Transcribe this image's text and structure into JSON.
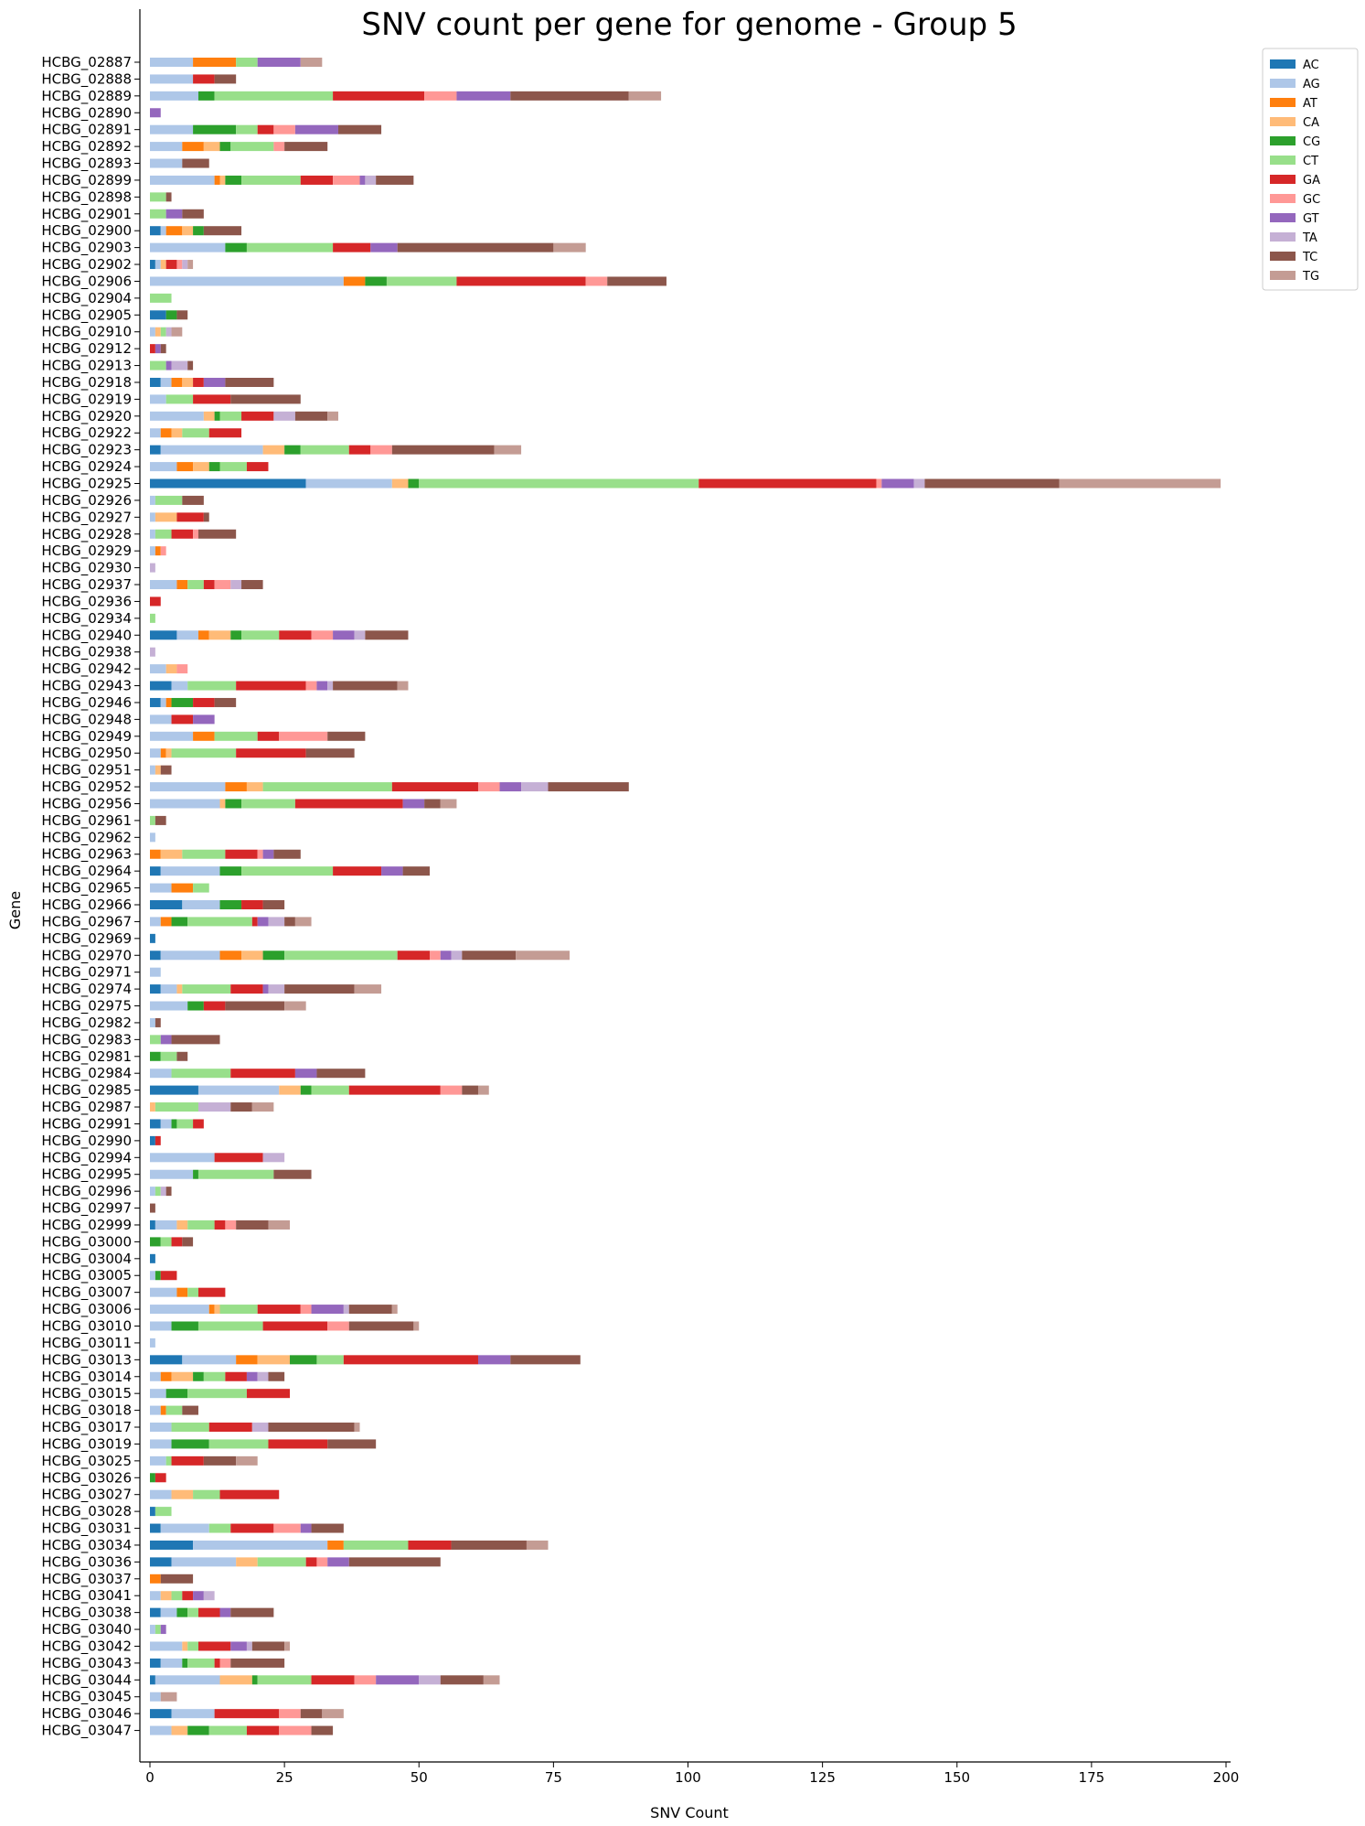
{
  "chart_data": {
    "type": "bar",
    "orientation": "horizontal",
    "stacked": true,
    "title": "SNV count per gene for genome - Group 5",
    "xlabel": "SNV Count",
    "ylabel": "Gene",
    "xlim": [
      0,
      200
    ],
    "xticks": [
      0,
      25,
      50,
      75,
      100,
      125,
      150,
      175,
      200
    ],
    "grid": false,
    "legend_position": "upper-right-outside",
    "series": [
      {
        "name": "AC",
        "color": "#1f77b4"
      },
      {
        "name": "AG",
        "color": "#aec7e8"
      },
      {
        "name": "AT",
        "color": "#ff7f0e"
      },
      {
        "name": "CA",
        "color": "#ffbb78"
      },
      {
        "name": "CG",
        "color": "#2ca02c"
      },
      {
        "name": "CT",
        "color": "#98df8a"
      },
      {
        "name": "GA",
        "color": "#d62728"
      },
      {
        "name": "GC",
        "color": "#ff9896"
      },
      {
        "name": "GT",
        "color": "#9467bd"
      },
      {
        "name": "TA",
        "color": "#c5b0d5"
      },
      {
        "name": "TC",
        "color": "#8c564b"
      },
      {
        "name": "TG",
        "color": "#c49c94"
      }
    ],
    "categories": [
      "HCBG_02887",
      "HCBG_02888",
      "HCBG_02889",
      "HCBG_02890",
      "HCBG_02891",
      "HCBG_02892",
      "HCBG_02893",
      "HCBG_02899",
      "HCBG_02898",
      "HCBG_02901",
      "HCBG_02900",
      "HCBG_02903",
      "HCBG_02902",
      "HCBG_02906",
      "HCBG_02904",
      "HCBG_02905",
      "HCBG_02910",
      "HCBG_02912",
      "HCBG_02913",
      "HCBG_02918",
      "HCBG_02919",
      "HCBG_02920",
      "HCBG_02922",
      "HCBG_02923",
      "HCBG_02924",
      "HCBG_02925",
      "HCBG_02926",
      "HCBG_02927",
      "HCBG_02928",
      "HCBG_02929",
      "HCBG_02930",
      "HCBG_02937",
      "HCBG_02936",
      "HCBG_02934",
      "HCBG_02940",
      "HCBG_02938",
      "HCBG_02942",
      "HCBG_02943",
      "HCBG_02946",
      "HCBG_02948",
      "HCBG_02949",
      "HCBG_02950",
      "HCBG_02951",
      "HCBG_02952",
      "HCBG_02956",
      "HCBG_02961",
      "HCBG_02962",
      "HCBG_02963",
      "HCBG_02964",
      "HCBG_02965",
      "HCBG_02966",
      "HCBG_02967",
      "HCBG_02969",
      "HCBG_02970",
      "HCBG_02971",
      "HCBG_02974",
      "HCBG_02975",
      "HCBG_02982",
      "HCBG_02983",
      "HCBG_02981",
      "HCBG_02984",
      "HCBG_02985",
      "HCBG_02987",
      "HCBG_02991",
      "HCBG_02990",
      "HCBG_02994",
      "HCBG_02995",
      "HCBG_02996",
      "HCBG_02997",
      "HCBG_02999",
      "HCBG_03000",
      "HCBG_03004",
      "HCBG_03005",
      "HCBG_03007",
      "HCBG_03006",
      "HCBG_03010",
      "HCBG_03011",
      "HCBG_03013",
      "HCBG_03014",
      "HCBG_03015",
      "HCBG_03018",
      "HCBG_03017",
      "HCBG_03019",
      "HCBG_03025",
      "HCBG_03026",
      "HCBG_03027",
      "HCBG_03028",
      "HCBG_03031",
      "HCBG_03034",
      "HCBG_03036",
      "HCBG_03037",
      "HCBG_03041",
      "HCBG_03038",
      "HCBG_03040",
      "HCBG_03042",
      "HCBG_03043",
      "HCBG_03044",
      "HCBG_03045",
      "HCBG_03046",
      "HCBG_03047"
    ],
    "values": [
      [
        0,
        8,
        8,
        0,
        0,
        4,
        0,
        0,
        8,
        0,
        0,
        4
      ],
      [
        0,
        8,
        0,
        0,
        0,
        0,
        4,
        0,
        0,
        0,
        4,
        0
      ],
      [
        0,
        9,
        0,
        0,
        3,
        22,
        17,
        6,
        10,
        0,
        22,
        6
      ],
      [
        0,
        0,
        0,
        0,
        0,
        0,
        0,
        0,
        2,
        0,
        0,
        0
      ],
      [
        0,
        8,
        0,
        0,
        8,
        4,
        3,
        4,
        8,
        0,
        8,
        0
      ],
      [
        0,
        6,
        4,
        3,
        2,
        8,
        0,
        2,
        0,
        0,
        8,
        0
      ],
      [
        0,
        6,
        0,
        0,
        0,
        0,
        0,
        0,
        0,
        0,
        5,
        0
      ],
      [
        0,
        12,
        1,
        1,
        3,
        11,
        6,
        5,
        1,
        2,
        7,
        0
      ],
      [
        0,
        0,
        0,
        0,
        0,
        3,
        0,
        0,
        0,
        0,
        1,
        0
      ],
      [
        0,
        0,
        0,
        0,
        0,
        3,
        0,
        0,
        3,
        0,
        4,
        0
      ],
      [
        2,
        1,
        3,
        2,
        2,
        0,
        0,
        0,
        0,
        0,
        7,
        0
      ],
      [
        0,
        14,
        0,
        0,
        4,
        16,
        7,
        0,
        5,
        0,
        29,
        6
      ],
      [
        1,
        1,
        0,
        1,
        0,
        0,
        2,
        1,
        0,
        1,
        0,
        1
      ],
      [
        0,
        36,
        4,
        0,
        4,
        13,
        24,
        4,
        0,
        0,
        11,
        0
      ],
      [
        0,
        0,
        0,
        0,
        0,
        4,
        0,
        0,
        0,
        0,
        0,
        0
      ],
      [
        3,
        0,
        0,
        0,
        2,
        0,
        0,
        0,
        0,
        0,
        2,
        0
      ],
      [
        0,
        1,
        0,
        1,
        0,
        1,
        0,
        0,
        0,
        1,
        0,
        2
      ],
      [
        0,
        0,
        0,
        0,
        0,
        0,
        1,
        0,
        1,
        0,
        1,
        0
      ],
      [
        0,
        0,
        0,
        0,
        0,
        3,
        0,
        0,
        1,
        3,
        1,
        0
      ],
      [
        2,
        2,
        2,
        2,
        0,
        0,
        2,
        0,
        4,
        0,
        9,
        0
      ],
      [
        0,
        3,
        0,
        0,
        0,
        5,
        7,
        0,
        0,
        0,
        13,
        0
      ],
      [
        0,
        10,
        0,
        2,
        1,
        4,
        6,
        0,
        0,
        4,
        6,
        2
      ],
      [
        0,
        2,
        2,
        2,
        0,
        5,
        6,
        0,
        0,
        0,
        0,
        0
      ],
      [
        2,
        19,
        0,
        4,
        3,
        9,
        4,
        4,
        0,
        0,
        19,
        5
      ],
      [
        0,
        5,
        3,
        3,
        2,
        5,
        4,
        0,
        0,
        0,
        0,
        0
      ],
      [
        29,
        16,
        0,
        3,
        2,
        52,
        33,
        1,
        6,
        2,
        25,
        30
      ],
      [
        0,
        1,
        0,
        0,
        0,
        5,
        0,
        0,
        0,
        0,
        4,
        0
      ],
      [
        0,
        1,
        0,
        4,
        0,
        0,
        5,
        0,
        0,
        0,
        1,
        0
      ],
      [
        0,
        1,
        0,
        0,
        0,
        3,
        4,
        1,
        0,
        0,
        7,
        0
      ],
      [
        0,
        1,
        1,
        0,
        0,
        0,
        0,
        1,
        0,
        0,
        0,
        0
      ],
      [
        0,
        0,
        0,
        0,
        0,
        0,
        0,
        0,
        0,
        1,
        0,
        0
      ],
      [
        0,
        5,
        2,
        0,
        0,
        3,
        2,
        3,
        0,
        2,
        4,
        0
      ],
      [
        0,
        0,
        0,
        0,
        0,
        0,
        2,
        0,
        0,
        0,
        0,
        0
      ],
      [
        0,
        0,
        0,
        0,
        0,
        1,
        0,
        0,
        0,
        0,
        0,
        0
      ],
      [
        5,
        4,
        2,
        4,
        2,
        7,
        6,
        4,
        4,
        2,
        8,
        0
      ],
      [
        0,
        0,
        0,
        0,
        0,
        0,
        0,
        0,
        0,
        1,
        0,
        0
      ],
      [
        0,
        3,
        0,
        2,
        0,
        0,
        0,
        2,
        0,
        0,
        0,
        0
      ],
      [
        4,
        3,
        0,
        0,
        0,
        9,
        13,
        2,
        2,
        1,
        12,
        2
      ],
      [
        2,
        1,
        1,
        0,
        4,
        0,
        4,
        0,
        0,
        0,
        4,
        0
      ],
      [
        0,
        4,
        0,
        0,
        0,
        0,
        4,
        0,
        4,
        0,
        0,
        0
      ],
      [
        0,
        8,
        4,
        0,
        0,
        8,
        4,
        9,
        0,
        0,
        7,
        0
      ],
      [
        0,
        2,
        1,
        1,
        0,
        12,
        13,
        0,
        0,
        0,
        9,
        0
      ],
      [
        0,
        1,
        0,
        1,
        0,
        0,
        0,
        0,
        0,
        0,
        2,
        0
      ],
      [
        0,
        14,
        4,
        3,
        0,
        24,
        16,
        4,
        4,
        5,
        15,
        0
      ],
      [
        0,
        13,
        0,
        1,
        3,
        10,
        20,
        0,
        4,
        0,
        3,
        3
      ],
      [
        0,
        0,
        0,
        0,
        0,
        1,
        0,
        0,
        0,
        0,
        2,
        0
      ],
      [
        0,
        1,
        0,
        0,
        0,
        0,
        0,
        0,
        0,
        0,
        0,
        0
      ],
      [
        0,
        0,
        2,
        4,
        0,
        8,
        6,
        1,
        2,
        0,
        5,
        0
      ],
      [
        2,
        11,
        0,
        0,
        4,
        17,
        9,
        0,
        4,
        0,
        5,
        0
      ],
      [
        0,
        4,
        4,
        0,
        0,
        3,
        0,
        0,
        0,
        0,
        0,
        0
      ],
      [
        6,
        7,
        0,
        0,
        4,
        0,
        4,
        0,
        0,
        0,
        4,
        0
      ],
      [
        0,
        2,
        2,
        0,
        3,
        12,
        1,
        0,
        2,
        3,
        2,
        3
      ],
      [
        1,
        0,
        0,
        0,
        0,
        0,
        0,
        0,
        0,
        0,
        0,
        0
      ],
      [
        2,
        11,
        4,
        4,
        4,
        21,
        6,
        2,
        2,
        2,
        10,
        10
      ],
      [
        0,
        2,
        0,
        0,
        0,
        0,
        0,
        0,
        0,
        0,
        0,
        0
      ],
      [
        2,
        3,
        0,
        1,
        0,
        9,
        6,
        0,
        1,
        3,
        13,
        5
      ],
      [
        0,
        7,
        0,
        0,
        3,
        0,
        4,
        0,
        0,
        0,
        11,
        4
      ],
      [
        0,
        1,
        0,
        0,
        0,
        0,
        0,
        0,
        0,
        0,
        1,
        0
      ],
      [
        0,
        0,
        0,
        0,
        0,
        2,
        0,
        0,
        2,
        0,
        9,
        0
      ],
      [
        0,
        0,
        0,
        0,
        2,
        3,
        0,
        0,
        0,
        0,
        2,
        0
      ],
      [
        0,
        4,
        0,
        0,
        0,
        11,
        12,
        0,
        4,
        0,
        9,
        0
      ],
      [
        9,
        15,
        0,
        4,
        2,
        7,
        17,
        4,
        0,
        0,
        3,
        2
      ],
      [
        0,
        0,
        0,
        1,
        0,
        8,
        0,
        0,
        0,
        6,
        4,
        4
      ],
      [
        2,
        2,
        0,
        0,
        1,
        3,
        2,
        0,
        0,
        0,
        0,
        0
      ],
      [
        1,
        0,
        0,
        0,
        0,
        0,
        1,
        0,
        0,
        0,
        0,
        0
      ],
      [
        0,
        12,
        0,
        0,
        0,
        0,
        9,
        0,
        0,
        4,
        0,
        0
      ],
      [
        0,
        8,
        0,
        0,
        1,
        14,
        0,
        0,
        0,
        0,
        7,
        0
      ],
      [
        0,
        1,
        0,
        0,
        0,
        1,
        0,
        0,
        0,
        1,
        1,
        0
      ],
      [
        0,
        0,
        0,
        0,
        0,
        0,
        0,
        0,
        0,
        0,
        1,
        0
      ],
      [
        1,
        4,
        0,
        2,
        0,
        5,
        2,
        2,
        0,
        0,
        6,
        4
      ],
      [
        0,
        0,
        0,
        0,
        2,
        2,
        2,
        0,
        0,
        0,
        2,
        0
      ],
      [
        1,
        0,
        0,
        0,
        0,
        0,
        0,
        0,
        0,
        0,
        0,
        0
      ],
      [
        0,
        1,
        0,
        0,
        1,
        0,
        3,
        0,
        0,
        0,
        0,
        0
      ],
      [
        0,
        5,
        2,
        0,
        0,
        2,
        5,
        0,
        0,
        0,
        0,
        0
      ],
      [
        0,
        11,
        1,
        1,
        0,
        7,
        8,
        2,
        6,
        1,
        8,
        1
      ],
      [
        0,
        4,
        0,
        0,
        5,
        12,
        12,
        4,
        0,
        0,
        12,
        1
      ],
      [
        0,
        1,
        0,
        0,
        0,
        0,
        0,
        0,
        0,
        0,
        0,
        0
      ],
      [
        6,
        10,
        4,
        6,
        5,
        5,
        25,
        0,
        6,
        0,
        13,
        0
      ],
      [
        0,
        2,
        2,
        4,
        2,
        4,
        4,
        0,
        2,
        2,
        3,
        0
      ],
      [
        0,
        3,
        0,
        0,
        4,
        11,
        8,
        0,
        0,
        0,
        0,
        0
      ],
      [
        0,
        2,
        1,
        0,
        0,
        3,
        0,
        0,
        0,
        0,
        3,
        0
      ],
      [
        0,
        4,
        0,
        0,
        0,
        7,
        8,
        0,
        0,
        3,
        16,
        1
      ],
      [
        0,
        4,
        0,
        0,
        7,
        11,
        11,
        0,
        0,
        0,
        9,
        0
      ],
      [
        0,
        3,
        0,
        0,
        0,
        1,
        6,
        0,
        0,
        0,
        6,
        4
      ],
      [
        0,
        0,
        0,
        0,
        1,
        0,
        2,
        0,
        0,
        0,
        0,
        0
      ],
      [
        0,
        4,
        0,
        4,
        0,
        5,
        11,
        0,
        0,
        0,
        0,
        0
      ],
      [
        1,
        0,
        0,
        0,
        0,
        3,
        0,
        0,
        0,
        0,
        0,
        0
      ],
      [
        2,
        9,
        0,
        0,
        0,
        4,
        8,
        5,
        2,
        0,
        6,
        0
      ],
      [
        8,
        25,
        3,
        0,
        0,
        12,
        8,
        0,
        0,
        0,
        14,
        4
      ],
      [
        4,
        12,
        0,
        4,
        0,
        9,
        2,
        2,
        4,
        0,
        17,
        0
      ],
      [
        0,
        0,
        2,
        0,
        0,
        0,
        0,
        0,
        0,
        0,
        6,
        0
      ],
      [
        0,
        2,
        0,
        2,
        0,
        2,
        2,
        0,
        2,
        2,
        0,
        0
      ],
      [
        2,
        3,
        0,
        0,
        2,
        2,
        4,
        0,
        2,
        0,
        8,
        0
      ],
      [
        0,
        1,
        0,
        0,
        0,
        1,
        0,
        0,
        1,
        0,
        0,
        0
      ],
      [
        0,
        6,
        0,
        1,
        0,
        2,
        6,
        0,
        3,
        1,
        6,
        1
      ],
      [
        2,
        4,
        0,
        0,
        1,
        5,
        1,
        2,
        0,
        0,
        10,
        0
      ],
      [
        1,
        12,
        0,
        6,
        1,
        10,
        8,
        4,
        8,
        4,
        8,
        3
      ],
      [
        0,
        2,
        0,
        0,
        0,
        0,
        0,
        0,
        0,
        0,
        0,
        3
      ],
      [
        4,
        8,
        0,
        0,
        0,
        0,
        12,
        4,
        0,
        0,
        4,
        4
      ],
      [
        0,
        4,
        0,
        3,
        4,
        7,
        6,
        6,
        0,
        0,
        4,
        0
      ]
    ]
  }
}
